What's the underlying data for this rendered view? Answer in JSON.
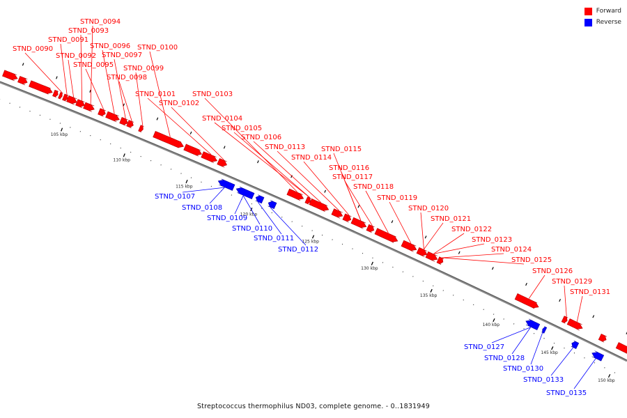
{
  "legend": {
    "forward": {
      "label": "Forward",
      "color": "#ff0000"
    },
    "reverse": {
      "label": "Reverse",
      "color": "#0000ff"
    }
  },
  "caption": "Streptococcus thermophilus ND03, complete genome. - 0..1831949",
  "axis_labels": [
    "105 kbp",
    "110 kbp",
    "115 kbp",
    "120 kbp",
    "125 kbp",
    "130 kbp",
    "135 kbp",
    "140 kbp",
    "145 kbp",
    "150 kbp"
  ],
  "forward_genes": [
    "STND_0090",
    "STND_0091",
    "STND_0092",
    "STND_0093",
    "STND_0094",
    "STND_0095",
    "STND_0096",
    "STND_0097",
    "STND_0098",
    "STND_0099",
    "STND_0100",
    "STND_0101",
    "STND_0102",
    "STND_0103",
    "STND_0104",
    "STND_0105",
    "STND_0106",
    "STND_0113",
    "STND_0114",
    "STND_0115",
    "STND_0116",
    "STND_0117",
    "STND_0118",
    "STND_0119",
    "STND_0120",
    "STND_0121",
    "STND_0122",
    "STND_0123",
    "STND_0124",
    "STND_0125",
    "STND_0126",
    "STND_0129",
    "STND_0131"
  ],
  "reverse_genes": [
    "STND_0107",
    "STND_0108",
    "STND_0109",
    "STND_0110",
    "STND_0111",
    "STND_0112",
    "STND_0127",
    "STND_0128",
    "STND_0130",
    "STND_0133",
    "STND_0135"
  ]
}
